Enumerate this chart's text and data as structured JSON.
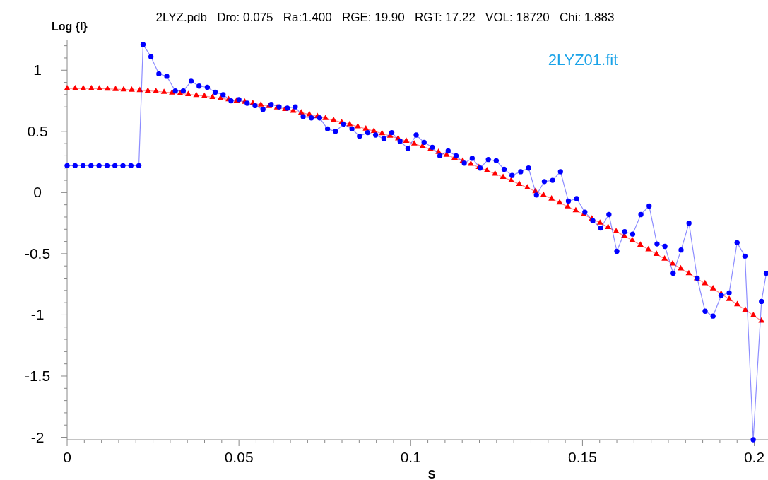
{
  "chart_data": {
    "type": "line",
    "title": "2LYZ.pdb   Dro: 0.075   Ra:1.400   RGE: 19.90   RGT: 17.22   VOL: 18720   Chi: 1.883",
    "xlabel": "S",
    "ylabel": "Log {I}",
    "annotations": [
      "2LYZ01.fit"
    ],
    "xlim": [
      0,
      0.204
    ],
    "ylim": [
      -2.02,
      1.25
    ],
    "xticks": [
      0,
      {
        "value": 0.005,
        "label": null
      },
      {
        "value": 0.01,
        "label": null
      },
      {
        "value": 0.015,
        "label": null
      },
      {
        "value": 0.02,
        "label": null
      },
      {
        "value": 0.025,
        "label": null
      },
      {
        "value": 0.03,
        "label": null
      },
      {
        "value": 0.035,
        "label": null
      },
      {
        "value": 0.04,
        "label": null
      },
      {
        "value": 0.045,
        "label": null
      },
      0.05,
      {
        "value": 0.055,
        "label": null
      },
      {
        "value": 0.06,
        "label": null
      },
      {
        "value": 0.065,
        "label": null
      },
      {
        "value": 0.07,
        "label": null
      },
      {
        "value": 0.075,
        "label": null
      },
      {
        "value": 0.08,
        "label": null
      },
      {
        "value": 0.085,
        "label": null
      },
      {
        "value": 0.09,
        "label": null
      },
      {
        "value": 0.095,
        "label": null
      },
      0.1,
      {
        "value": 0.105,
        "label": null
      },
      {
        "value": 0.11,
        "label": null
      },
      {
        "value": 0.115,
        "label": null
      },
      {
        "value": 0.12,
        "label": null
      },
      {
        "value": 0.125,
        "label": null
      },
      {
        "value": 0.13,
        "label": null
      },
      {
        "value": 0.135,
        "label": null
      },
      {
        "value": 0.14,
        "label": null
      },
      {
        "value": 0.145,
        "label": null
      },
      0.15,
      {
        "value": 0.155,
        "label": null
      },
      {
        "value": 0.16,
        "label": null
      },
      {
        "value": 0.165,
        "label": null
      },
      {
        "value": 0.17,
        "label": null
      },
      {
        "value": 0.175,
        "label": null
      },
      {
        "value": 0.18,
        "label": null
      },
      {
        "value": 0.185,
        "label": null
      },
      {
        "value": 0.19,
        "label": null
      },
      {
        "value": 0.195,
        "label": null
      },
      0.2
    ],
    "yticks": [
      -2,
      {
        "value": -1.9,
        "label": null
      },
      {
        "value": -1.8,
        "label": null
      },
      {
        "value": -1.7,
        "label": null
      },
      {
        "value": -1.6,
        "label": null
      },
      -1.5,
      {
        "value": -1.4,
        "label": null
      },
      {
        "value": -1.3,
        "label": null
      },
      {
        "value": -1.2,
        "label": null
      },
      {
        "value": -1.1,
        "label": null
      },
      -1,
      {
        "value": -0.9,
        "label": null
      },
      {
        "value": -0.8,
        "label": null
      },
      {
        "value": -0.7,
        "label": null
      },
      {
        "value": -0.6,
        "label": null
      },
      -0.5,
      {
        "value": -0.4,
        "label": null
      },
      {
        "value": -0.3,
        "label": null
      },
      {
        "value": -0.2,
        "label": null
      },
      {
        "value": -0.1,
        "label": null
      },
      0,
      {
        "value": 0.1,
        "label": null
      },
      {
        "value": 0.2,
        "label": null
      },
      {
        "value": 0.3,
        "label": null
      },
      {
        "value": 0.4,
        "label": null
      },
      0.5,
      {
        "value": 0.6,
        "label": null
      },
      {
        "value": 0.7,
        "label": null
      },
      {
        "value": 0.8,
        "label": null
      },
      {
        "value": 0.9,
        "label": null
      },
      1,
      {
        "value": 1.1,
        "label": null
      },
      {
        "value": 1.2,
        "label": null
      }
    ],
    "grid": false,
    "line_style": "solid",
    "series": [
      {
        "color": "#ff0000",
        "marker": "triangle",
        "x": [
          0,
          0.00235,
          0.0047,
          0.00705,
          0.0094,
          0.01175,
          0.0141,
          0.01645,
          0.0188,
          0.02115,
          0.0235,
          0.02585,
          0.0282,
          0.03055,
          0.0329,
          0.03525,
          0.0376,
          0.03995,
          0.0423,
          0.04465,
          0.047,
          0.04935,
          0.0517,
          0.05405,
          0.0564,
          0.05875,
          0.0611,
          0.06345,
          0.0658,
          0.06815,
          0.0705,
          0.07285,
          0.0752,
          0.07755,
          0.0799,
          0.08225,
          0.0846,
          0.08695,
          0.0893,
          0.09165,
          0.094,
          0.09635,
          0.0987,
          0.10105,
          0.1034,
          0.10575,
          0.1081,
          0.11045,
          0.1128,
          0.11515,
          0.1175,
          0.11985,
          0.1222,
          0.12455,
          0.1269,
          0.12925,
          0.1316,
          0.13395,
          0.1363,
          0.13865,
          0.141,
          0.14335,
          0.1457,
          0.14805,
          0.1504,
          0.15275,
          0.1551,
          0.15745,
          0.1598,
          0.16215,
          0.1645,
          0.16685,
          0.1692,
          0.17155,
          0.1739,
          0.17625,
          0.1786,
          0.18095,
          0.1833,
          0.18565,
          0.188,
          0.19035,
          0.1927,
          0.19505,
          0.1974,
          0.19975,
          0.2021
        ],
        "values": [
          0.85,
          0.85,
          0.85,
          0.85,
          0.849,
          0.847,
          0.845,
          0.842,
          0.839,
          0.836,
          0.831,
          0.827,
          0.821,
          0.816,
          0.81,
          0.803,
          0.795,
          0.788,
          0.779,
          0.77,
          0.761,
          0.751,
          0.741,
          0.73,
          0.718,
          0.706,
          0.694,
          0.681,
          0.667,
          0.653,
          0.638,
          0.623,
          0.607,
          0.591,
          0.574,
          0.557,
          0.539,
          0.521,
          0.502,
          0.483,
          0.463,
          0.442,
          0.421,
          0.399,
          0.377,
          0.354,
          0.331,
          0.307,
          0.283,
          0.258,
          0.233,
          0.207,
          0.18,
          0.153,
          0.126,
          0.098,
          0.069,
          0.04,
          0.01,
          -0.02,
          -0.051,
          -0.083,
          -0.115,
          -0.147,
          -0.18,
          -0.214,
          -0.248,
          -0.283,
          -0.318,
          -0.354,
          -0.39,
          -0.428,
          -0.465,
          -0.503,
          -0.542,
          -0.581,
          -0.621,
          -0.661,
          -0.702,
          -0.743,
          -0.785,
          -0.828,
          -0.871,
          -0.915,
          -0.959,
          -1.004,
          -1.049
        ]
      },
      {
        "color": "#0000ff",
        "marker": "circle",
        "x": [
          0,
          0.00232,
          0.00464,
          0.00696,
          0.00928,
          0.0116,
          0.01392,
          0.01624,
          0.01856,
          0.02088,
          0.0221,
          0.0244,
          0.0267,
          0.029,
          0.0315,
          0.0338,
          0.0361,
          0.0384,
          0.0408,
          0.0431,
          0.0454,
          0.0477,
          0.05,
          0.0524,
          0.0547,
          0.057,
          0.0594,
          0.0617,
          0.0641,
          0.0664,
          0.0687,
          0.0711,
          0.0735,
          0.0758,
          0.0781,
          0.0805,
          0.0829,
          0.0851,
          0.0875,
          0.0898,
          0.0922,
          0.0945,
          0.0969,
          0.0992,
          0.1016,
          0.1039,
          0.1063,
          0.1085,
          0.1109,
          0.1132,
          0.1156,
          0.1179,
          0.1202,
          0.1226,
          0.1249,
          0.1272,
          0.1295,
          0.132,
          0.1343,
          0.1366,
          0.1389,
          0.1413,
          0.1436,
          0.1459,
          0.1483,
          0.1507,
          0.153,
          0.1553,
          0.1577,
          0.16,
          0.1623,
          0.1646,
          0.167,
          0.1694,
          0.1717,
          0.174,
          0.1764,
          0.1787,
          0.181,
          0.1834,
          0.1857,
          0.188,
          0.1904,
          0.1927,
          0.195,
          0.1973,
          0.1997,
          0.2021,
          0.2035
        ],
        "values": [
          0.22,
          0.22,
          0.22,
          0.22,
          0.22,
          0.22,
          0.22,
          0.22,
          0.22,
          0.22,
          1.21,
          1.11,
          0.97,
          0.95,
          0.83,
          0.83,
          0.91,
          0.87,
          0.86,
          0.82,
          0.8,
          0.75,
          0.76,
          0.73,
          0.71,
          0.68,
          0.72,
          0.7,
          0.69,
          0.7,
          0.62,
          0.61,
          0.61,
          0.52,
          0.5,
          0.56,
          0.52,
          0.46,
          0.49,
          0.47,
          0.44,
          0.49,
          0.42,
          0.36,
          0.47,
          0.41,
          0.37,
          0.3,
          0.34,
          0.3,
          0.24,
          0.28,
          0.2,
          0.27,
          0.26,
          0.19,
          0.14,
          0.17,
          0.2,
          -0.02,
          0.09,
          0.1,
          0.17,
          -0.07,
          -0.05,
          -0.16,
          -0.23,
          -0.29,
          -0.18,
          -0.48,
          -0.32,
          -0.34,
          -0.18,
          -0.11,
          -0.42,
          -0.44,
          -0.66,
          -0.47,
          -0.25,
          -0.7,
          -0.97,
          -1.01,
          -0.84,
          -0.82,
          -0.41,
          -0.52,
          -2.02,
          -0.89,
          -0.66
        ]
      }
    ]
  }
}
